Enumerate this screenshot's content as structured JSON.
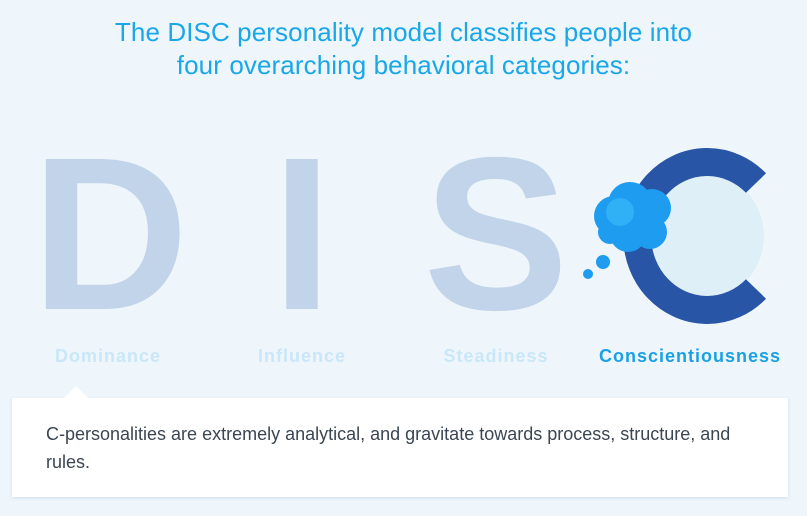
{
  "headline": {
    "line1": "The DISC personality model classifies people into",
    "line2": "four overarching behavioral categories:"
  },
  "letters": {
    "d": "D",
    "i": "I",
    "s": "S",
    "c": "C"
  },
  "labels": {
    "d": "Dominance",
    "i": "Influence",
    "s": "Steadiness",
    "c": "Conscientiousness"
  },
  "selected": "Conscientiousness",
  "description": "C-personalities are extremely analytical, and gravitate towards process, structure, and rules.",
  "colors": {
    "background": "#eef6fb",
    "accent": "#1aa7e8",
    "letter_inactive": "#c2d4e9",
    "letter_active": "#2855a6",
    "label_inactive": "#c9e7f8",
    "thought_bubble": "#1ba4f0"
  },
  "icons": {
    "thought_bubble": "thought-bubble-icon"
  }
}
